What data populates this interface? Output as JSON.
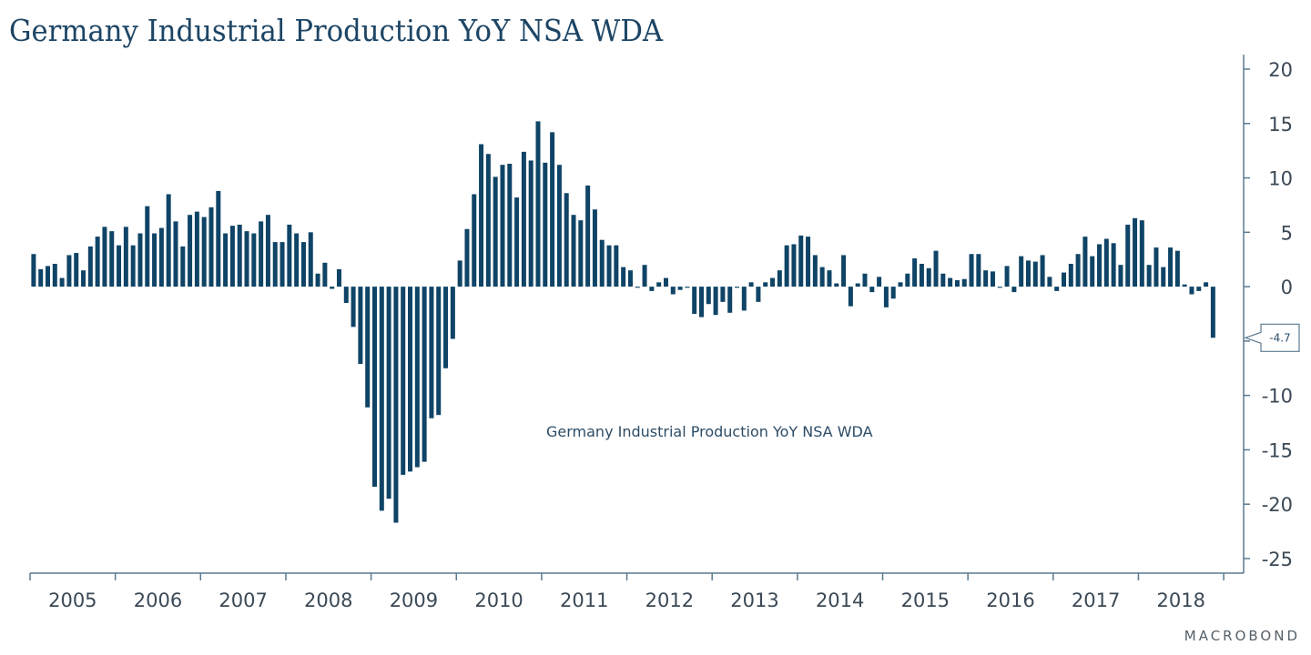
{
  "chart_data": {
    "type": "bar",
    "title": "Germany Industrial Production YoY NSA WDA",
    "series_label": "Germany Industrial Production YoY NSA WDA",
    "xlabel": "",
    "ylabel": "",
    "ylim": [
      -25,
      20
    ],
    "yticks": [
      20,
      15,
      10,
      5,
      0,
      -5,
      -10,
      -15,
      -20,
      -25
    ],
    "ytick_labels": [
      "20",
      "15",
      "10",
      "5",
      "0",
      "",
      "-10",
      "-15",
      "-20",
      "-25"
    ],
    "x_start": "2005-01",
    "frequency": "monthly",
    "x_year_labels": [
      "2005",
      "2006",
      "2007",
      "2008",
      "2009",
      "2010",
      "2011",
      "2012",
      "2013",
      "2014",
      "2015",
      "2016",
      "2017",
      "2018"
    ],
    "last_value_callout": "-4.7",
    "grid": false,
    "y_axis_position": "right",
    "bar_color": "#0f4466",
    "axis_color": "#5b7a8f",
    "values": [
      3.0,
      1.6,
      1.9,
      2.1,
      0.8,
      2.9,
      3.1,
      1.5,
      3.7,
      4.6,
      5.5,
      5.1,
      3.8,
      5.5,
      3.8,
      4.9,
      7.4,
      4.9,
      5.4,
      8.5,
      6.0,
      3.7,
      6.6,
      6.9,
      6.4,
      7.3,
      8.8,
      4.9,
      5.6,
      5.7,
      5.1,
      4.9,
      6.0,
      6.6,
      4.1,
      4.1,
      5.7,
      4.9,
      4.1,
      5.0,
      1.2,
      2.2,
      -0.2,
      1.6,
      -1.5,
      -3.7,
      -7.1,
      -11.1,
      -18.4,
      -20.6,
      -19.5,
      -21.7,
      -17.3,
      -17.0,
      -16.6,
      -16.1,
      -12.1,
      -11.8,
      -7.5,
      -4.8,
      2.4,
      5.3,
      8.5,
      13.1,
      12.2,
      10.1,
      11.2,
      11.3,
      8.2,
      12.4,
      11.6,
      15.2,
      11.4,
      14.2,
      11.2,
      8.6,
      6.6,
      6.1,
      9.3,
      7.1,
      4.3,
      3.8,
      3.8,
      1.8,
      1.5,
      -0.1,
      2.0,
      -0.4,
      0.4,
      0.8,
      -0.7,
      -0.3,
      -0.1,
      -2.5,
      -2.8,
      -1.6,
      -2.6,
      -1.4,
      -2.4,
      -0.1,
      -2.2,
      0.4,
      -1.4,
      0.4,
      0.8,
      1.5,
      3.8,
      3.9,
      4.7,
      4.6,
      2.9,
      1.8,
      1.5,
      0.3,
      2.9,
      -1.8,
      0.3,
      1.2,
      -0.5,
      0.9,
      -1.9,
      -1.1,
      0.4,
      1.2,
      2.6,
      2.1,
      1.7,
      3.3,
      1.2,
      0.8,
      0.6,
      0.7,
      3.0,
      3.0,
      1.5,
      1.4,
      -0.1,
      1.9,
      -0.5,
      2.8,
      2.4,
      2.3,
      2.9,
      0.9,
      -0.4,
      1.3,
      2.1,
      3.0,
      4.6,
      2.8,
      3.9,
      4.4,
      4.0,
      2.0,
      5.7,
      6.3,
      6.1,
      2.0,
      3.6,
      1.8,
      3.6,
      3.3,
      0.2,
      -0.7,
      -0.4,
      0.4,
      -4.7
    ]
  },
  "branding": {
    "watermark": "MACROBOND"
  }
}
